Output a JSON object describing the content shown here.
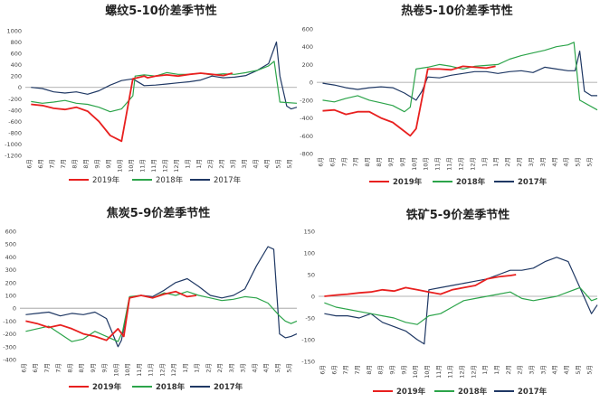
{
  "months": [
    "6月",
    "6月",
    "7月",
    "7月",
    "8月",
    "8月",
    "9月",
    "9月",
    "10月",
    "10月",
    "11月",
    "11月",
    "12月",
    "12月",
    "1月",
    "1月",
    "2月",
    "2月",
    "3月",
    "3月",
    "4月",
    "4月",
    "5月",
    "5月"
  ],
  "colors": {
    "2019": "#e8201f",
    "2018": "#2ca44a",
    "2017": "#1f3864",
    "zero": "#9a9a9a"
  },
  "chart_data": [
    {
      "type": "line",
      "title": "螺纹5-10价差季节性",
      "ylim": [
        -1200,
        1000
      ],
      "yticks": [
        -1200,
        -1000,
        -800,
        -600,
        -400,
        -200,
        0,
        200,
        400,
        600,
        800,
        1000
      ],
      "categories": [
        "6月",
        "6月",
        "7月",
        "7月",
        "8月",
        "8月",
        "9月",
        "9月",
        "10月",
        "10月",
        "11月",
        "11月",
        "12月",
        "12月",
        "1月",
        "1月",
        "2月",
        "2月",
        "3月",
        "3月",
        "4月",
        "4月",
        "5月",
        "5月"
      ],
      "legend": [
        "2019年",
        "2018年",
        "2017年"
      ],
      "series": [
        {
          "name": "2019年",
          "key": "2019",
          "x": [
            0,
            1,
            2,
            3,
            4,
            5,
            6,
            7,
            8,
            9,
            10,
            10.3,
            11,
            12,
            13,
            14,
            15,
            16,
            17,
            17.8
          ],
          "values": [
            -300,
            -320,
            -370,
            -390,
            -350,
            -420,
            -600,
            -850,
            -950,
            150,
            200,
            170,
            200,
            220,
            200,
            230,
            250,
            230,
            210,
            250
          ]
        },
        {
          "name": "2018年",
          "key": "2018",
          "x": [
            0,
            1,
            2,
            3,
            4,
            5,
            6,
            7,
            8,
            9,
            9.2,
            10,
            11,
            12,
            13,
            14,
            15,
            16,
            17,
            18,
            19,
            20,
            21,
            21.5,
            22,
            23.5
          ],
          "values": [
            -250,
            -280,
            -260,
            -230,
            -280,
            -300,
            -350,
            -430,
            -380,
            -150,
            200,
            220,
            200,
            260,
            230,
            230,
            250,
            220,
            240,
            230,
            260,
            300,
            380,
            460,
            -260,
            -280
          ]
        },
        {
          "name": "2017年",
          "key": "2017",
          "x": [
            0,
            1,
            2,
            3,
            4,
            5,
            6,
            7,
            8,
            9,
            10,
            11,
            12,
            13,
            14,
            15,
            16,
            17,
            18,
            19,
            20,
            21,
            21.7,
            22,
            22.6,
            23,
            23.5
          ],
          "values": [
            0,
            -20,
            -80,
            -100,
            -80,
            -120,
            -60,
            40,
            120,
            150,
            30,
            40,
            60,
            80,
            100,
            130,
            200,
            170,
            180,
            210,
            300,
            420,
            800,
            200,
            -330,
            -380,
            -350
          ]
        }
      ]
    },
    {
      "type": "line",
      "title": "热卷5-10价差季节性",
      "ylim": [
        -800,
        600
      ],
      "yticks": [
        -800,
        -600,
        -400,
        -200,
        0,
        200,
        400,
        600
      ],
      "categories": [
        "6月",
        "6月",
        "7月",
        "7月",
        "8月",
        "8月",
        "9月",
        "9月",
        "10月",
        "10月",
        "11月",
        "11月",
        "12月",
        "12月",
        "1月",
        "1月",
        "2月",
        "2月",
        "3月",
        "3月",
        "4月",
        "4月",
        "5月",
        "5月"
      ],
      "legend": [
        "2019年",
        "2018年",
        "2017年"
      ],
      "series": [
        {
          "name": "2019年",
          "key": "2019",
          "x": [
            0,
            1,
            2,
            3,
            4,
            5,
            6,
            7,
            7.5,
            8,
            9,
            10,
            11,
            12,
            13,
            14,
            14.8
          ],
          "values": [
            -320,
            -310,
            -360,
            -330,
            -330,
            -400,
            -450,
            -550,
            -600,
            -520,
            150,
            150,
            140,
            180,
            170,
            160,
            180
          ]
        },
        {
          "name": "2018年",
          "key": "2018",
          "x": [
            0,
            1,
            2,
            3,
            4,
            5,
            6,
            7,
            7.5,
            8,
            9,
            10,
            11,
            12,
            13,
            14,
            15,
            16,
            17,
            18,
            19,
            20,
            21,
            21.5,
            22,
            23.5
          ],
          "values": [
            -200,
            -220,
            -180,
            -150,
            -200,
            -230,
            -260,
            -330,
            -280,
            150,
            170,
            200,
            180,
            150,
            180,
            190,
            200,
            260,
            300,
            330,
            360,
            400,
            420,
            450,
            -200,
            -310
          ]
        },
        {
          "name": "2017年",
          "key": "2017",
          "x": [
            0,
            1,
            2,
            3,
            4,
            5,
            6,
            7,
            8,
            8.5,
            9,
            10,
            11,
            12,
            13,
            14,
            15,
            16,
            17,
            18,
            19,
            20,
            21,
            21.6,
            22,
            22.4,
            23,
            23.5
          ],
          "values": [
            -10,
            -30,
            -60,
            -80,
            -60,
            -50,
            -60,
            -120,
            -200,
            -100,
            60,
            50,
            80,
            100,
            120,
            120,
            100,
            120,
            130,
            110,
            170,
            150,
            130,
            130,
            350,
            -100,
            -150,
            -150
          ]
        }
      ]
    },
    {
      "type": "line",
      "title": "焦炭5-9价差季节性",
      "ylim": [
        -400,
        600
      ],
      "yticks": [
        -400,
        -300,
        -200,
        -100,
        0,
        100,
        200,
        300,
        400,
        500,
        600
      ],
      "categories": [
        "6月",
        "6月",
        "7月",
        "7月",
        "8月",
        "8月",
        "9月",
        "9月",
        "10月",
        "10月",
        "11月",
        "11月",
        "12月",
        "12月",
        "1月",
        "1月",
        "2月",
        "2月",
        "3月",
        "3月",
        "4月",
        "4月",
        "5月",
        "5月"
      ],
      "legend": [
        "2019年",
        "2018年",
        "2017年"
      ],
      "series": [
        {
          "name": "2019年",
          "key": "2019",
          "x": [
            0,
            1,
            2,
            3,
            4,
            5,
            6,
            7,
            8,
            8.5,
            9,
            10,
            11,
            12,
            13,
            14,
            14.8
          ],
          "values": [
            -100,
            -120,
            -150,
            -130,
            -160,
            -200,
            -220,
            -250,
            -160,
            -220,
            80,
            100,
            80,
            110,
            130,
            90,
            100
          ]
        },
        {
          "name": "2018年",
          "key": "2018",
          "x": [
            0,
            1,
            2,
            3,
            4,
            5,
            6,
            7,
            8,
            8.4,
            9,
            10,
            11,
            12,
            13,
            14,
            15,
            16,
            17,
            18,
            19,
            20,
            21,
            22,
            22.5,
            23,
            23.5
          ],
          "values": [
            -180,
            -160,
            -140,
            -200,
            -260,
            -240,
            -180,
            -220,
            -260,
            -180,
            90,
            100,
            80,
            120,
            100,
            130,
            100,
            80,
            60,
            70,
            90,
            80,
            40,
            -60,
            -100,
            -120,
            -100
          ]
        },
        {
          "name": "2017年",
          "key": "2017",
          "x": [
            0,
            1,
            2,
            3,
            4,
            5,
            6,
            7,
            8,
            8.3,
            9,
            10,
            11,
            12,
            13,
            14,
            15,
            16,
            17,
            18,
            19,
            20,
            21,
            21.5,
            22,
            22.5,
            23,
            23.5
          ],
          "values": [
            -50,
            -40,
            -30,
            -60,
            -40,
            -50,
            -30,
            -80,
            -300,
            -250,
            80,
            100,
            90,
            140,
            200,
            230,
            170,
            100,
            80,
            100,
            150,
            330,
            480,
            460,
            -200,
            -230,
            -220,
            -200
          ]
        }
      ]
    },
    {
      "type": "line",
      "title": "铁矿5-9价差季节性",
      "ylim": [
        -150,
        150
      ],
      "yticks": [
        -150,
        -100,
        -50,
        0,
        50,
        100,
        150
      ],
      "categories": [
        "6月",
        "6月",
        "7月",
        "7月",
        "8月",
        "8月",
        "9月",
        "9月",
        "10月",
        "10月",
        "11月",
        "11月",
        "12月",
        "12月",
        "1月",
        "1月",
        "2月",
        "2月",
        "3月",
        "3月",
        "4月",
        "4月",
        "5月",
        "5月"
      ],
      "legend": [
        "2019年",
        "2018年",
        "2017年"
      ],
      "series": [
        {
          "name": "2019年",
          "key": "2019",
          "x": [
            0,
            1,
            2,
            3,
            4,
            5,
            6,
            7,
            8,
            9,
            10,
            11,
            12,
            13,
            14,
            15,
            16,
            16.5
          ],
          "values": [
            0,
            3,
            5,
            8,
            10,
            15,
            12,
            20,
            15,
            10,
            5,
            15,
            20,
            25,
            40,
            45,
            48,
            50
          ]
        },
        {
          "name": "2018年",
          "key": "2018",
          "x": [
            0,
            1,
            2,
            3,
            4,
            5,
            6,
            7,
            8,
            9,
            10,
            11,
            12,
            13,
            14,
            15,
            16,
            17,
            18,
            19,
            20,
            21,
            22,
            23,
            23.5
          ],
          "values": [
            -15,
            -25,
            -30,
            -35,
            -40,
            -45,
            -50,
            -60,
            -65,
            -45,
            -40,
            -25,
            -10,
            -5,
            0,
            5,
            10,
            -5,
            -10,
            -5,
            0,
            10,
            20,
            -10,
            -5
          ]
        },
        {
          "name": "2017年",
          "key": "2017",
          "x": [
            0,
            1,
            2,
            3,
            4,
            5,
            6,
            7,
            8,
            8.6,
            9,
            10,
            11,
            12,
            13,
            14,
            15,
            16,
            17,
            18,
            19,
            20,
            21,
            22,
            23,
            23.5
          ],
          "values": [
            -40,
            -45,
            -45,
            -50,
            -40,
            -60,
            -70,
            -80,
            -100,
            -110,
            15,
            20,
            25,
            30,
            35,
            40,
            50,
            60,
            60,
            65,
            80,
            90,
            80,
            20,
            -40,
            -20
          ]
        }
      ]
    }
  ]
}
